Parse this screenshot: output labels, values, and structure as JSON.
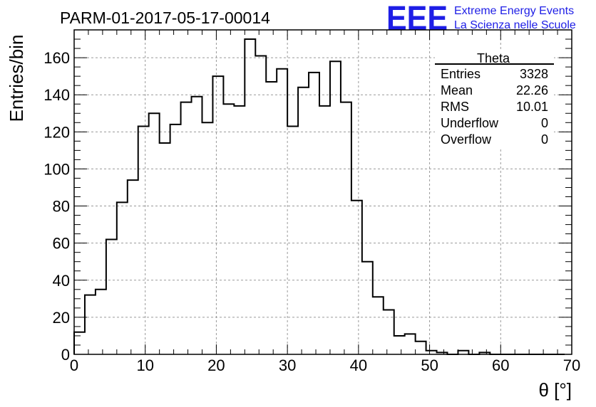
{
  "title": "PARM-01-2017-05-17-00014",
  "logo": {
    "mark": "EEE",
    "line1": "Extreme Energy Events",
    "line2": "La Scienza nelle Scuole",
    "color": "#1e1ee6"
  },
  "stats": {
    "name": "Theta",
    "rows": [
      {
        "label": "Entries",
        "value": "3328"
      },
      {
        "label": "Mean",
        "value": "22.26"
      },
      {
        "label": "RMS",
        "value": "10.01"
      },
      {
        "label": "Underflow",
        "value": "0"
      },
      {
        "label": "Overflow",
        "value": "0"
      }
    ]
  },
  "chart_data": {
    "type": "histogram",
    "title": "PARM-01-2017-05-17-00014",
    "xlabel": "θ [°]",
    "ylabel": "Entries/bin",
    "xlim": [
      0,
      70
    ],
    "ylim": [
      0,
      175
    ],
    "bin_width": 1.5,
    "x_ticks": [
      0,
      10,
      20,
      30,
      40,
      50,
      60,
      70
    ],
    "y_ticks": [
      0,
      20,
      40,
      60,
      80,
      100,
      120,
      140,
      160
    ],
    "grid": true,
    "values": [
      12,
      32,
      35,
      62,
      82,
      94,
      123,
      130,
      114,
      124,
      136,
      139,
      125,
      150,
      135,
      134,
      170,
      161,
      147,
      154,
      123,
      144,
      152,
      134,
      158,
      136,
      83,
      50,
      31,
      24,
      10,
      11,
      7,
      2,
      1,
      0,
      2,
      0,
      1,
      0,
      0,
      0,
      0,
      0,
      0,
      0
    ]
  }
}
